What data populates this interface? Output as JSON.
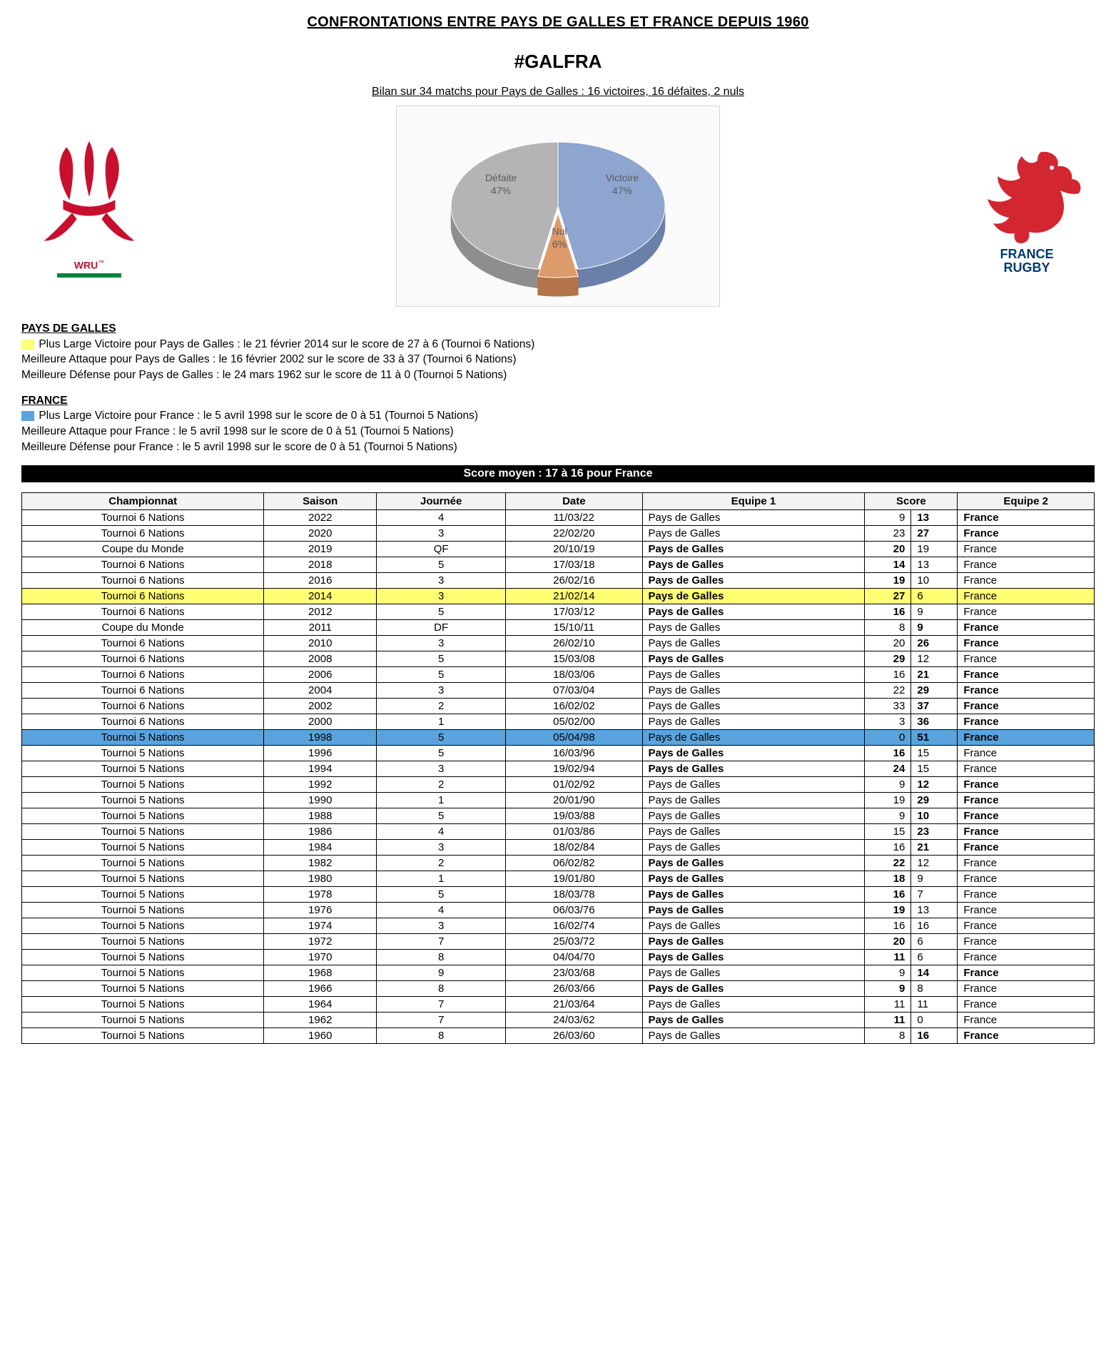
{
  "title": "CONFRONTATIONS ENTRE PAYS DE GALLES ET FRANCE DEPUIS 1960",
  "hashtag": "#GALFRA",
  "bilan": "Bilan sur 34 matchs pour Pays de Galles : 16 victoires, 16 défaites, 2 nuls",
  "logos": {
    "wales": {
      "text": "WRU",
      "tm": "™",
      "red": "#c8102e",
      "green": "#00843d",
      "line_color": "#00843d"
    },
    "france": {
      "line1": "FRANCE",
      "line2": "RUGBY",
      "blue": "#003a70",
      "red": "#d22630"
    }
  },
  "pie": {
    "type": "pie-3d",
    "background_color": "#fafafa",
    "border_color": "#d5d5d5",
    "label_fontsize": 14,
    "label_color": "#5b5b5b",
    "slices": [
      {
        "label": "Défaite",
        "pctLabel": "47%",
        "value": 47,
        "color": "#b4b4b4",
        "side": "#8e8e8e"
      },
      {
        "label": "Nul",
        "pctLabel": "6%",
        "value": 6,
        "color": "#dd9a6b",
        "side": "#b27448"
      },
      {
        "label": "Victoire",
        "pctLabel": "47%",
        "value": 47,
        "color": "#8ea5d0",
        "side": "#6a80a8"
      }
    ]
  },
  "stats_wales": {
    "header": "PAYS DE GALLES",
    "swatch": "#ffff74",
    "line1": "Plus Large Victoire pour Pays de Galles : le 21 février 2014 sur le score de 27 à 6 (Tournoi 6 Nations)",
    "line2": "Meilleure Attaque pour Pays de Galles : le 16 février 2002 sur le score de 33 à 37 (Tournoi 6 Nations)",
    "line3": "Meilleure Défense pour Pays de Galles : le 24 mars 1962 sur le score de 11 à 0 (Tournoi 5 Nations)"
  },
  "stats_france": {
    "header": "FRANCE",
    "swatch": "#5aa3dd",
    "line1": "Plus Large Victoire pour France : le 5 avril 1998 sur le score de 0 à 51 (Tournoi 5 Nations)",
    "line2": "Meilleure Attaque pour France : le 5 avril 1998 sur le score de 0 à 51 (Tournoi 5 Nations)",
    "line3": "Meilleure Défense pour France : le 5 avril 1998 sur le score de 0 à 51 (Tournoi 5 Nations)"
  },
  "score_moyen": "Score moyen : 17 à 16 pour France",
  "highlight_colors": {
    "yellow": "#ffff74",
    "blue": "#5aa3dd"
  },
  "table": {
    "columns": [
      "Championnat",
      "Saison",
      "Journée",
      "Date",
      "Equipe 1",
      "Score",
      "Equipe 2"
    ],
    "rows": [
      {
        "champ": "Tournoi 6 Nations",
        "saison": "2022",
        "j": "4",
        "date": "11/03/22",
        "e1": "Pays de Galles",
        "s1": "9",
        "s2": "13",
        "e2": "France",
        "winner": 2,
        "hl": null
      },
      {
        "champ": "Tournoi 6 Nations",
        "saison": "2020",
        "j": "3",
        "date": "22/02/20",
        "e1": "Pays de Galles",
        "s1": "23",
        "s2": "27",
        "e2": "France",
        "winner": 2,
        "hl": null
      },
      {
        "champ": "Coupe du Monde",
        "saison": "2019",
        "j": "QF",
        "date": "20/10/19",
        "e1": "Pays de Galles",
        "s1": "20",
        "s2": "19",
        "e2": "France",
        "winner": 1,
        "hl": null
      },
      {
        "champ": "Tournoi 6 Nations",
        "saison": "2018",
        "j": "5",
        "date": "17/03/18",
        "e1": "Pays de Galles",
        "s1": "14",
        "s2": "13",
        "e2": "France",
        "winner": 1,
        "hl": null
      },
      {
        "champ": "Tournoi 6 Nations",
        "saison": "2016",
        "j": "3",
        "date": "26/02/16",
        "e1": "Pays de Galles",
        "s1": "19",
        "s2": "10",
        "e2": "France",
        "winner": 1,
        "hl": null
      },
      {
        "champ": "Tournoi 6 Nations",
        "saison": "2014",
        "j": "3",
        "date": "21/02/14",
        "e1": "Pays de Galles",
        "s1": "27",
        "s2": "6",
        "e2": "France",
        "winner": 1,
        "hl": "yellow"
      },
      {
        "champ": "Tournoi 6 Nations",
        "saison": "2012",
        "j": "5",
        "date": "17/03/12",
        "e1": "Pays de Galles",
        "s1": "16",
        "s2": "9",
        "e2": "France",
        "winner": 1,
        "hl": null
      },
      {
        "champ": "Coupe du Monde",
        "saison": "2011",
        "j": "DF",
        "date": "15/10/11",
        "e1": "Pays de Galles",
        "s1": "8",
        "s2": "9",
        "e2": "France",
        "winner": 2,
        "hl": null
      },
      {
        "champ": "Tournoi 6 Nations",
        "saison": "2010",
        "j": "3",
        "date": "26/02/10",
        "e1": "Pays de Galles",
        "s1": "20",
        "s2": "26",
        "e2": "France",
        "winner": 2,
        "hl": null
      },
      {
        "champ": "Tournoi 6 Nations",
        "saison": "2008",
        "j": "5",
        "date": "15/03/08",
        "e1": "Pays de Galles",
        "s1": "29",
        "s2": "12",
        "e2": "France",
        "winner": 1,
        "hl": null
      },
      {
        "champ": "Tournoi 6 Nations",
        "saison": "2006",
        "j": "5",
        "date": "18/03/06",
        "e1": "Pays de Galles",
        "s1": "16",
        "s2": "21",
        "e2": "France",
        "winner": 2,
        "hl": null
      },
      {
        "champ": "Tournoi 6 Nations",
        "saison": "2004",
        "j": "3",
        "date": "07/03/04",
        "e1": "Pays de Galles",
        "s1": "22",
        "s2": "29",
        "e2": "France",
        "winner": 2,
        "hl": null
      },
      {
        "champ": "Tournoi 6 Nations",
        "saison": "2002",
        "j": "2",
        "date": "16/02/02",
        "e1": "Pays de Galles",
        "s1": "33",
        "s2": "37",
        "e2": "France",
        "winner": 2,
        "hl": null
      },
      {
        "champ": "Tournoi 6 Nations",
        "saison": "2000",
        "j": "1",
        "date": "05/02/00",
        "e1": "Pays de Galles",
        "s1": "3",
        "s2": "36",
        "e2": "France",
        "winner": 2,
        "hl": null
      },
      {
        "champ": "Tournoi 5 Nations",
        "saison": "1998",
        "j": "5",
        "date": "05/04/98",
        "e1": "Pays de Galles",
        "s1": "0",
        "s2": "51",
        "e2": "France",
        "winner": 2,
        "hl": "blue"
      },
      {
        "champ": "Tournoi 5 Nations",
        "saison": "1996",
        "j": "5",
        "date": "16/03/96",
        "e1": "Pays de Galles",
        "s1": "16",
        "s2": "15",
        "e2": "France",
        "winner": 1,
        "hl": null
      },
      {
        "champ": "Tournoi 5 Nations",
        "saison": "1994",
        "j": "3",
        "date": "19/02/94",
        "e1": "Pays de Galles",
        "s1": "24",
        "s2": "15",
        "e2": "France",
        "winner": 1,
        "hl": null
      },
      {
        "champ": "Tournoi 5 Nations",
        "saison": "1992",
        "j": "2",
        "date": "01/02/92",
        "e1": "Pays de Galles",
        "s1": "9",
        "s2": "12",
        "e2": "France",
        "winner": 2,
        "hl": null
      },
      {
        "champ": "Tournoi 5 Nations",
        "saison": "1990",
        "j": "1",
        "date": "20/01/90",
        "e1": "Pays de Galles",
        "s1": "19",
        "s2": "29",
        "e2": "France",
        "winner": 2,
        "hl": null
      },
      {
        "champ": "Tournoi 5 Nations",
        "saison": "1988",
        "j": "5",
        "date": "19/03/88",
        "e1": "Pays de Galles",
        "s1": "9",
        "s2": "10",
        "e2": "France",
        "winner": 2,
        "hl": null
      },
      {
        "champ": "Tournoi 5 Nations",
        "saison": "1986",
        "j": "4",
        "date": "01/03/86",
        "e1": "Pays de Galles",
        "s1": "15",
        "s2": "23",
        "e2": "France",
        "winner": 2,
        "hl": null
      },
      {
        "champ": "Tournoi 5 Nations",
        "saison": "1984",
        "j": "3",
        "date": "18/02/84",
        "e1": "Pays de Galles",
        "s1": "16",
        "s2": "21",
        "e2": "France",
        "winner": 2,
        "hl": null
      },
      {
        "champ": "Tournoi 5 Nations",
        "saison": "1982",
        "j": "2",
        "date": "06/02/82",
        "e1": "Pays de Galles",
        "s1": "22",
        "s2": "12",
        "e2": "France",
        "winner": 1,
        "hl": null
      },
      {
        "champ": "Tournoi 5 Nations",
        "saison": "1980",
        "j": "1",
        "date": "19/01/80",
        "e1": "Pays de Galles",
        "s1": "18",
        "s2": "9",
        "e2": "France",
        "winner": 1,
        "hl": null
      },
      {
        "champ": "Tournoi 5 Nations",
        "saison": "1978",
        "j": "5",
        "date": "18/03/78",
        "e1": "Pays de Galles",
        "s1": "16",
        "s2": "7",
        "e2": "France",
        "winner": 1,
        "hl": null
      },
      {
        "champ": "Tournoi 5 Nations",
        "saison": "1976",
        "j": "4",
        "date": "06/03/76",
        "e1": "Pays de Galles",
        "s1": "19",
        "s2": "13",
        "e2": "France",
        "winner": 1,
        "hl": null
      },
      {
        "champ": "Tournoi 5 Nations",
        "saison": "1974",
        "j": "3",
        "date": "16/02/74",
        "e1": "Pays de Galles",
        "s1": "16",
        "s2": "16",
        "e2": "France",
        "winner": 0,
        "hl": null
      },
      {
        "champ": "Tournoi 5 Nations",
        "saison": "1972",
        "j": "7",
        "date": "25/03/72",
        "e1": "Pays de Galles",
        "s1": "20",
        "s2": "6",
        "e2": "France",
        "winner": 1,
        "hl": null
      },
      {
        "champ": "Tournoi 5 Nations",
        "saison": "1970",
        "j": "8",
        "date": "04/04/70",
        "e1": "Pays de Galles",
        "s1": "11",
        "s2": "6",
        "e2": "France",
        "winner": 1,
        "hl": null
      },
      {
        "champ": "Tournoi 5 Nations",
        "saison": "1968",
        "j": "9",
        "date": "23/03/68",
        "e1": "Pays de Galles",
        "s1": "9",
        "s2": "14",
        "e2": "France",
        "winner": 2,
        "hl": null
      },
      {
        "champ": "Tournoi 5 Nations",
        "saison": "1966",
        "j": "8",
        "date": "26/03/66",
        "e1": "Pays de Galles",
        "s1": "9",
        "s2": "8",
        "e2": "France",
        "winner": 1,
        "hl": null
      },
      {
        "champ": "Tournoi 5 Nations",
        "saison": "1964",
        "j": "7",
        "date": "21/03/64",
        "e1": "Pays de Galles",
        "s1": "11",
        "s2": "11",
        "e2": "France",
        "winner": 0,
        "hl": null
      },
      {
        "champ": "Tournoi 5 Nations",
        "saison": "1962",
        "j": "7",
        "date": "24/03/62",
        "e1": "Pays de Galles",
        "s1": "11",
        "s2": "0",
        "e2": "France",
        "winner": 1,
        "hl": null
      },
      {
        "champ": "Tournoi 5 Nations",
        "saison": "1960",
        "j": "8",
        "date": "26/03/60",
        "e1": "Pays de Galles",
        "s1": "8",
        "s2": "16",
        "e2": "France",
        "winner": 2,
        "hl": null
      }
    ]
  }
}
